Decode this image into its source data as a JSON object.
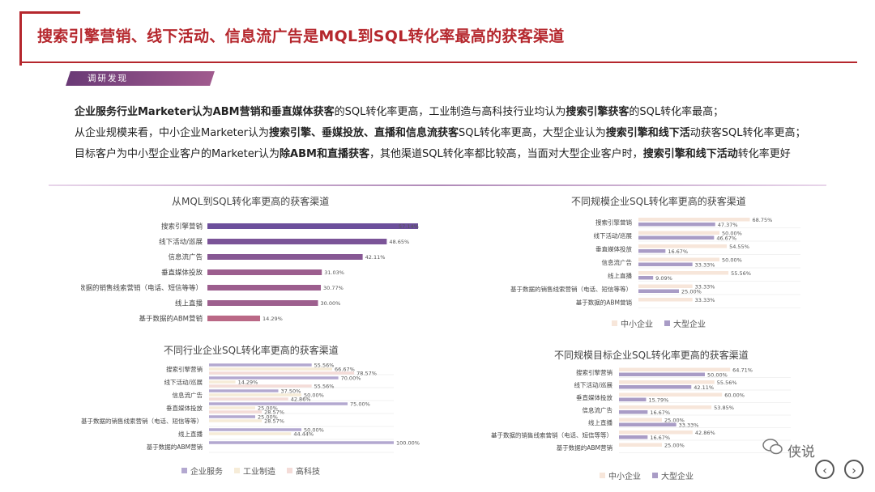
{
  "header": {
    "title": "搜索引擎营销、线下活动、信息流广告是MQL到SQL转化率最高的获客渠道",
    "tag": "调研发现"
  },
  "findings": [
    [
      {
        "t": "企业服务行业Marketer认为ABM营销和垂直媒体获客",
        "b": true
      },
      {
        "t": "的SQL转化率更高，工业制造与高科技行业均认为",
        "b": false
      },
      {
        "t": "搜索引擎获客",
        "b": true
      },
      {
        "t": "的SQL转化率最高；",
        "b": false
      }
    ],
    [
      {
        "t": "从企业规模来看，中小企业Marketer认为",
        "b": false
      },
      {
        "t": "搜索引擎、垂媒投放、直播和信息流获客",
        "b": true
      },
      {
        "t": "SQL转化率更高，大型企业认为",
        "b": false
      },
      {
        "t": "搜索引擎和线下活",
        "b": true
      },
      {
        "t": "动获客SQL转化率更高；",
        "b": false
      }
    ],
    [
      {
        "t": "目标客户为中小型企业客户的Marketer认为",
        "b": false
      },
      {
        "t": "除ABM和直播获客",
        "b": true
      },
      {
        "t": "，其他渠道SQL转化率都比较高，当面对大型企业客户时，",
        "b": false
      },
      {
        "t": "搜索引擎和线下活动",
        "b": true
      },
      {
        "t": "转化率更好",
        "b": false
      }
    ]
  ],
  "watermark": {
    "text": "侠说"
  },
  "nav": {
    "prev": "‹",
    "next": "›"
  },
  "chart_data": [
    {
      "id": "overall",
      "type": "bar",
      "orientation": "horizontal",
      "title": "从MQL到SQL转化率更高的获客渠道",
      "categories": [
        "搜索引擎营销",
        "线下活动/巡展",
        "信息流广告",
        "垂直媒体投放",
        "基于数据的销售线索营销（电话、短信等等）",
        "线上直播",
        "基于数据的ABM营销"
      ],
      "series": [
        {
          "values": [
            57.14,
            48.65,
            42.11,
            31.03,
            30.77,
            30.0,
            14.29
          ],
          "labels": [
            "57.14%",
            "48.65%",
            "42.11%",
            "31.03%",
            "30.77%",
            "30.00%",
            "14.29%"
          ]
        }
      ],
      "xlim": [
        0,
        57.14
      ],
      "colors": {
        "start": "#d4707e",
        "end": "#6c4f9c"
      }
    },
    {
      "id": "by_size",
      "type": "bar",
      "orientation": "horizontal",
      "title": "不同规模企业SQL转化率更高的获客渠道",
      "categories": [
        "搜索引擎营销",
        "线下活动/巡展",
        "垂直媒体投放",
        "信息流广告",
        "线上直播",
        "基于数据的销售线索营销（电话、短信等等）",
        "基于数据的ABM营销"
      ],
      "series": [
        {
          "name": "中小企业",
          "values": [
            68.75,
            50.0,
            54.55,
            50.0,
            55.56,
            33.33,
            33.33
          ],
          "labels": [
            "68.75%",
            "50.00%",
            "54.55%",
            "50.00%",
            "55.56%",
            "33.33%",
            "33.33%"
          ]
        },
        {
          "name": "大型企业",
          "values": [
            47.37,
            46.67,
            16.67,
            33.33,
            9.09,
            25.0,
            null
          ],
          "labels": [
            "47.37%",
            "46.67%",
            "16.67%",
            "33.33%",
            "9.09%",
            "25.00%",
            ""
          ]
        }
      ],
      "xlim": [
        0,
        100
      ],
      "legend": "bottom",
      "colors": {
        "中小企业": "#f7e6da",
        "大型企业": "#a99cc6"
      }
    },
    {
      "id": "by_industry",
      "type": "bar",
      "orientation": "horizontal",
      "title": "不同行业企业SQL转化率更高的获客渠道",
      "categories": [
        "搜索引擎营销",
        "线下活动/巡展",
        "信息流广告",
        "垂直媒体投放",
        "基于数据的销售线索营销（电话、短信等等）",
        "线上直播",
        "基于数据的ABM营销"
      ],
      "series": [
        {
          "name": "企业服务",
          "values": [
            55.56,
            70.0,
            37.5,
            75.0,
            25.0,
            50.0,
            100.0
          ],
          "labels": [
            "55.56%",
            "70.00%",
            "37.50%",
            "75.00%",
            "25.00%",
            "50.00%",
            "100.00%"
          ]
        },
        {
          "name": "工业制造",
          "values": [
            66.67,
            14.29,
            50.0,
            25.0,
            28.57,
            44.44,
            null
          ],
          "labels": [
            "66.67%",
            "14.29%",
            "50.00%",
            "25.00%",
            "28.57%",
            "44.44%",
            ""
          ]
        },
        {
          "name": "高科技",
          "values": [
            78.57,
            55.56,
            42.86,
            28.57,
            null,
            null,
            null
          ],
          "labels": [
            "78.57%",
            "55.56%",
            "42.86%",
            "28.57%",
            "",
            "",
            ""
          ]
        }
      ],
      "xlim": [
        0,
        100
      ],
      "legend": "bottom",
      "colors": {
        "企业服务": "#b3a8d0",
        "工业制造": "#f6ecd8",
        "高科技": "#f4dcd8"
      }
    },
    {
      "id": "by_target",
      "type": "bar",
      "orientation": "horizontal",
      "title": "不同规模目标企业SQL转化率更高的获客渠道",
      "categories": [
        "搜索引擎营销",
        "线下活动/巡展",
        "垂直媒体投放",
        "信息流广告",
        "线上直播",
        "基于数据的销售线索营销（电话、短信等等）",
        "基于数据的ABM营销"
      ],
      "series": [
        {
          "name": "中小企业",
          "values": [
            64.71,
            55.56,
            60.0,
            53.85,
            25.0,
            42.86,
            25.0
          ],
          "labels": [
            "64.71%",
            "55.56%",
            "60.00%",
            "53.85%",
            "25.00%",
            "42.86%",
            "25.00%"
          ]
        },
        {
          "name": "大型企业",
          "values": [
            50.0,
            42.11,
            15.79,
            16.67,
            33.33,
            16.67,
            null
          ],
          "labels": [
            "50.00%",
            "42.11%",
            "15.79%",
            "16.67%",
            "33.33%",
            "16.67%",
            ""
          ]
        }
      ],
      "xlim": [
        0,
        100
      ],
      "legend": "bottom",
      "colors": {
        "中小企业": "#f7e6da",
        "大型企业": "#a99cc6"
      }
    }
  ]
}
